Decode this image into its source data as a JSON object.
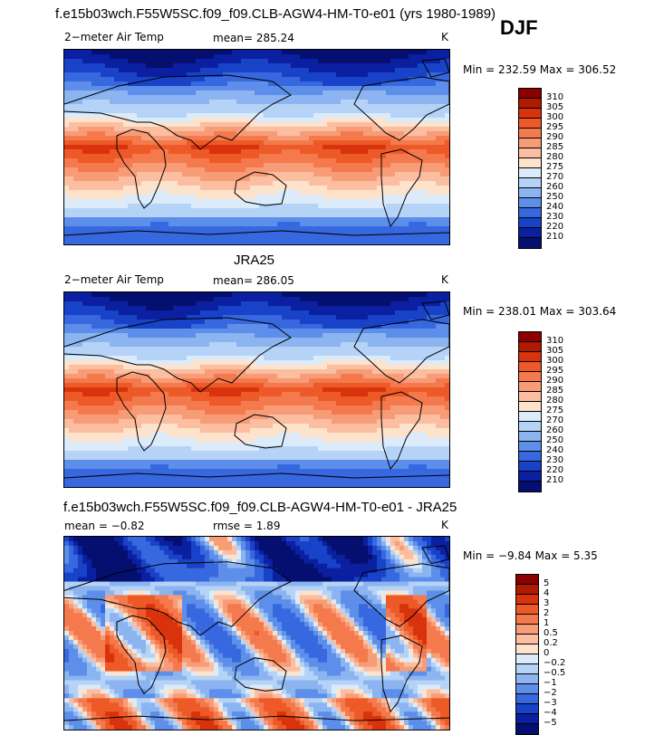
{
  "season": "DJF",
  "panels": [
    {
      "title": "f.e15b03wch.F55W5SC.f09_f09.CLB-AGW4-HM-T0-e01 (yrs 1980-1989)",
      "left_label": "2−meter Air Temp",
      "center_label": "mean= 285.24",
      "units": "K",
      "minmax": "Min = 232.59 Max = 306.52",
      "colorbar_labels": [
        "310",
        "305",
        "300",
        "295",
        "290",
        "285",
        "280",
        "275",
        "270",
        "260",
        "250",
        "240",
        "230",
        "220",
        "210"
      ],
      "colors": [
        "#8B0000",
        "#B01A00",
        "#D8330C",
        "#EE5A27",
        "#F47A4E",
        "#F89C77",
        "#FBBEA0",
        "#FDE2CC",
        "#DCEBFA",
        "#B5D3F6",
        "#8BB4F0",
        "#5D8FEA",
        "#3768E0",
        "#1842C8",
        "#0B20A0",
        "#050F70"
      ]
    },
    {
      "title": "JRA25",
      "left_label": "2−meter Air Temp",
      "center_label": "mean= 286.05",
      "units": "K",
      "minmax": "Min = 238.01 Max = 303.64",
      "colorbar_labels": [
        "310",
        "305",
        "300",
        "295",
        "290",
        "285",
        "280",
        "275",
        "270",
        "260",
        "250",
        "240",
        "230",
        "220",
        "210"
      ],
      "colors": [
        "#8B0000",
        "#B01A00",
        "#D8330C",
        "#EE5A27",
        "#F47A4E",
        "#F89C77",
        "#FBBEA0",
        "#FDE2CC",
        "#DCEBFA",
        "#B5D3F6",
        "#8BB4F0",
        "#5D8FEA",
        "#3768E0",
        "#1842C8",
        "#0B20A0",
        "#050F70"
      ]
    },
    {
      "title": "f.e15b03wch.F55W5SC.f09_f09.CLB-AGW4-HM-T0-e01 - JRA25",
      "left_label": "mean =   −0.82",
      "center_label": "rmse =    1.89",
      "units": "K",
      "minmax": "Min =   −9.84 Max =    5.35",
      "colorbar_labels": [
        "5",
        "4",
        "3",
        "2",
        "1",
        "0.5",
        "0.2",
        "0",
        "−0.2",
        "−0.5",
        "−1",
        "−2",
        "−3",
        "−4",
        "−5"
      ],
      "colors": [
        "#8B0000",
        "#B01A00",
        "#D8330C",
        "#EE5A27",
        "#F47A4E",
        "#F89C77",
        "#FBBEA0",
        "#FDE2CC",
        "#DCEBFA",
        "#B5D3F6",
        "#8BB4F0",
        "#5D8FEA",
        "#3768E0",
        "#1842C8",
        "#0B20A0",
        "#050F70"
      ]
    }
  ],
  "chart_data": [
    {
      "type": "heatmap",
      "title": "f.e15b03wch.F55W5SC.f09_f09.CLB-AGW4-HM-T0-e01 (yrs 1980-1989)",
      "variable": "2−meter Air Temp",
      "units": "K",
      "mean": 285.24,
      "min": 232.59,
      "max": 306.52,
      "contour_levels": [
        210,
        220,
        230,
        240,
        250,
        260,
        270,
        275,
        280,
        285,
        290,
        295,
        300,
        305,
        310
      ]
    },
    {
      "type": "heatmap",
      "title": "JRA25",
      "variable": "2−meter Air Temp",
      "units": "K",
      "mean": 286.05,
      "min": 238.01,
      "max": 303.64,
      "contour_levels": [
        210,
        220,
        230,
        240,
        250,
        260,
        270,
        275,
        280,
        285,
        290,
        295,
        300,
        305,
        310
      ]
    },
    {
      "type": "heatmap",
      "title": "f.e15b03wch.F55W5SC.f09_f09.CLB-AGW4-HM-T0-e01 - JRA25",
      "units": "K",
      "mean": -0.82,
      "rmse": 1.89,
      "min": -9.84,
      "max": 5.35,
      "contour_levels": [
        -5,
        -4,
        -3,
        -2,
        -1,
        -0.5,
        -0.2,
        0,
        0.2,
        0.5,
        1,
        2,
        3,
        4,
        5
      ]
    }
  ]
}
